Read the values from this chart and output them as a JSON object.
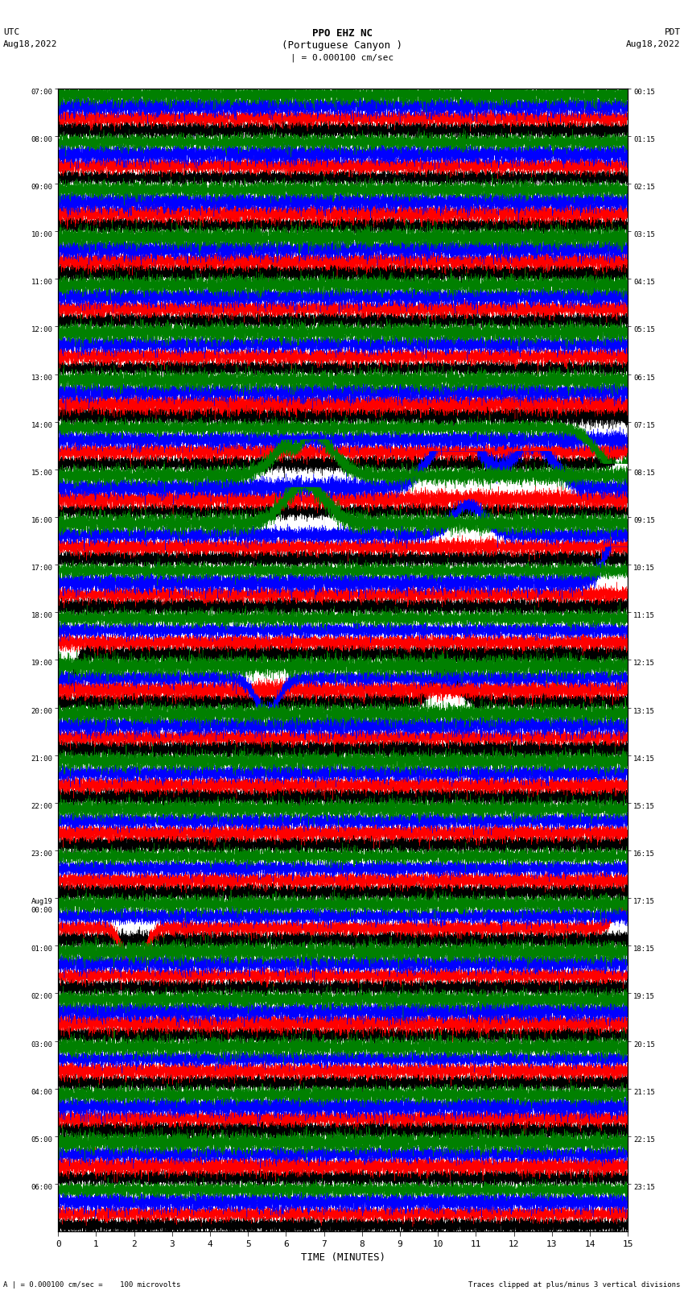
{
  "title_line1": "PPO EHZ NC",
  "title_line2": "(Portuguese Canyon )",
  "title_line3": "| = 0.000100 cm/sec",
  "utc_label": "UTC",
  "utc_date": "Aug18,2022",
  "pdt_label": "PDT",
  "pdt_date": "Aug18,2022",
  "xlabel": "TIME (MINUTES)",
  "footer_left": "A | = 0.000100 cm/sec =    100 microvolts",
  "footer_right": "Traces clipped at plus/minus 3 vertical divisions",
  "left_times": [
    "07:00",
    "08:00",
    "09:00",
    "10:00",
    "11:00",
    "12:00",
    "13:00",
    "14:00",
    "15:00",
    "16:00",
    "17:00",
    "18:00",
    "19:00",
    "20:00",
    "21:00",
    "22:00",
    "23:00",
    "Aug19\n00:00",
    "01:00",
    "02:00",
    "03:00",
    "04:00",
    "05:00",
    "06:00"
  ],
  "right_times": [
    "00:15",
    "01:15",
    "02:15",
    "03:15",
    "04:15",
    "05:15",
    "06:15",
    "07:15",
    "08:15",
    "09:15",
    "10:15",
    "11:15",
    "12:15",
    "13:15",
    "14:15",
    "15:15",
    "16:15",
    "17:15",
    "18:15",
    "19:15",
    "20:15",
    "21:15",
    "22:15",
    "23:15"
  ],
  "n_rows": 24,
  "n_traces_per_row": 4,
  "trace_colors": [
    "black",
    "red",
    "blue",
    "green"
  ],
  "bg_color": "white",
  "xmin": 0,
  "xmax": 15,
  "xticks": [
    0,
    1,
    2,
    3,
    4,
    5,
    6,
    7,
    8,
    9,
    10,
    11,
    12,
    13,
    14,
    15
  ]
}
